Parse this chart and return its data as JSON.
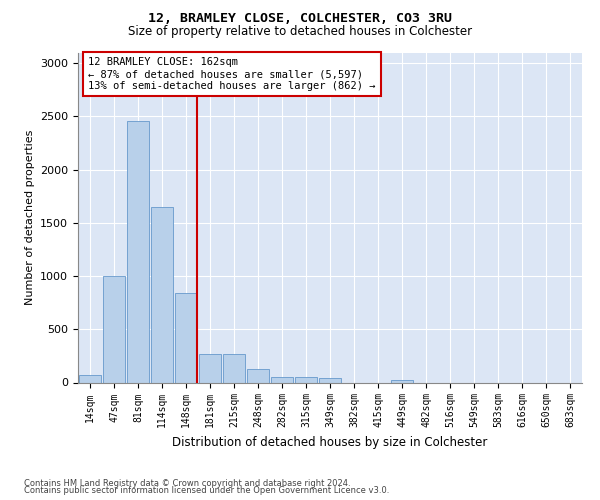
{
  "title": "12, BRAMLEY CLOSE, COLCHESTER, CO3 3RU",
  "subtitle": "Size of property relative to detached houses in Colchester",
  "xlabel": "Distribution of detached houses by size in Colchester",
  "ylabel": "Number of detached properties",
  "categories": [
    "14sqm",
    "47sqm",
    "81sqm",
    "114sqm",
    "148sqm",
    "181sqm",
    "215sqm",
    "248sqm",
    "282sqm",
    "315sqm",
    "349sqm",
    "382sqm",
    "415sqm",
    "449sqm",
    "482sqm",
    "516sqm",
    "549sqm",
    "583sqm",
    "616sqm",
    "650sqm",
    "683sqm"
  ],
  "values": [
    70,
    1000,
    2460,
    1650,
    840,
    270,
    265,
    130,
    55,
    55,
    40,
    0,
    0,
    25,
    0,
    0,
    0,
    0,
    0,
    0,
    0
  ],
  "bar_color": "#b8d0ea",
  "bar_edge_color": "#6699cc",
  "vline_color": "#cc0000",
  "annotation_text": "12 BRAMLEY CLOSE: 162sqm\n← 87% of detached houses are smaller (5,597)\n13% of semi-detached houses are larger (862) →",
  "annotation_box_color": "#cc0000",
  "ylim": [
    0,
    3100
  ],
  "yticks": [
    0,
    500,
    1000,
    1500,
    2000,
    2500,
    3000
  ],
  "background_color": "#dce6f5",
  "grid_color": "#ffffff",
  "fig_background": "#ffffff",
  "footer_line1": "Contains HM Land Registry data © Crown copyright and database right 2024.",
  "footer_line2": "Contains public sector information licensed under the Open Government Licence v3.0."
}
